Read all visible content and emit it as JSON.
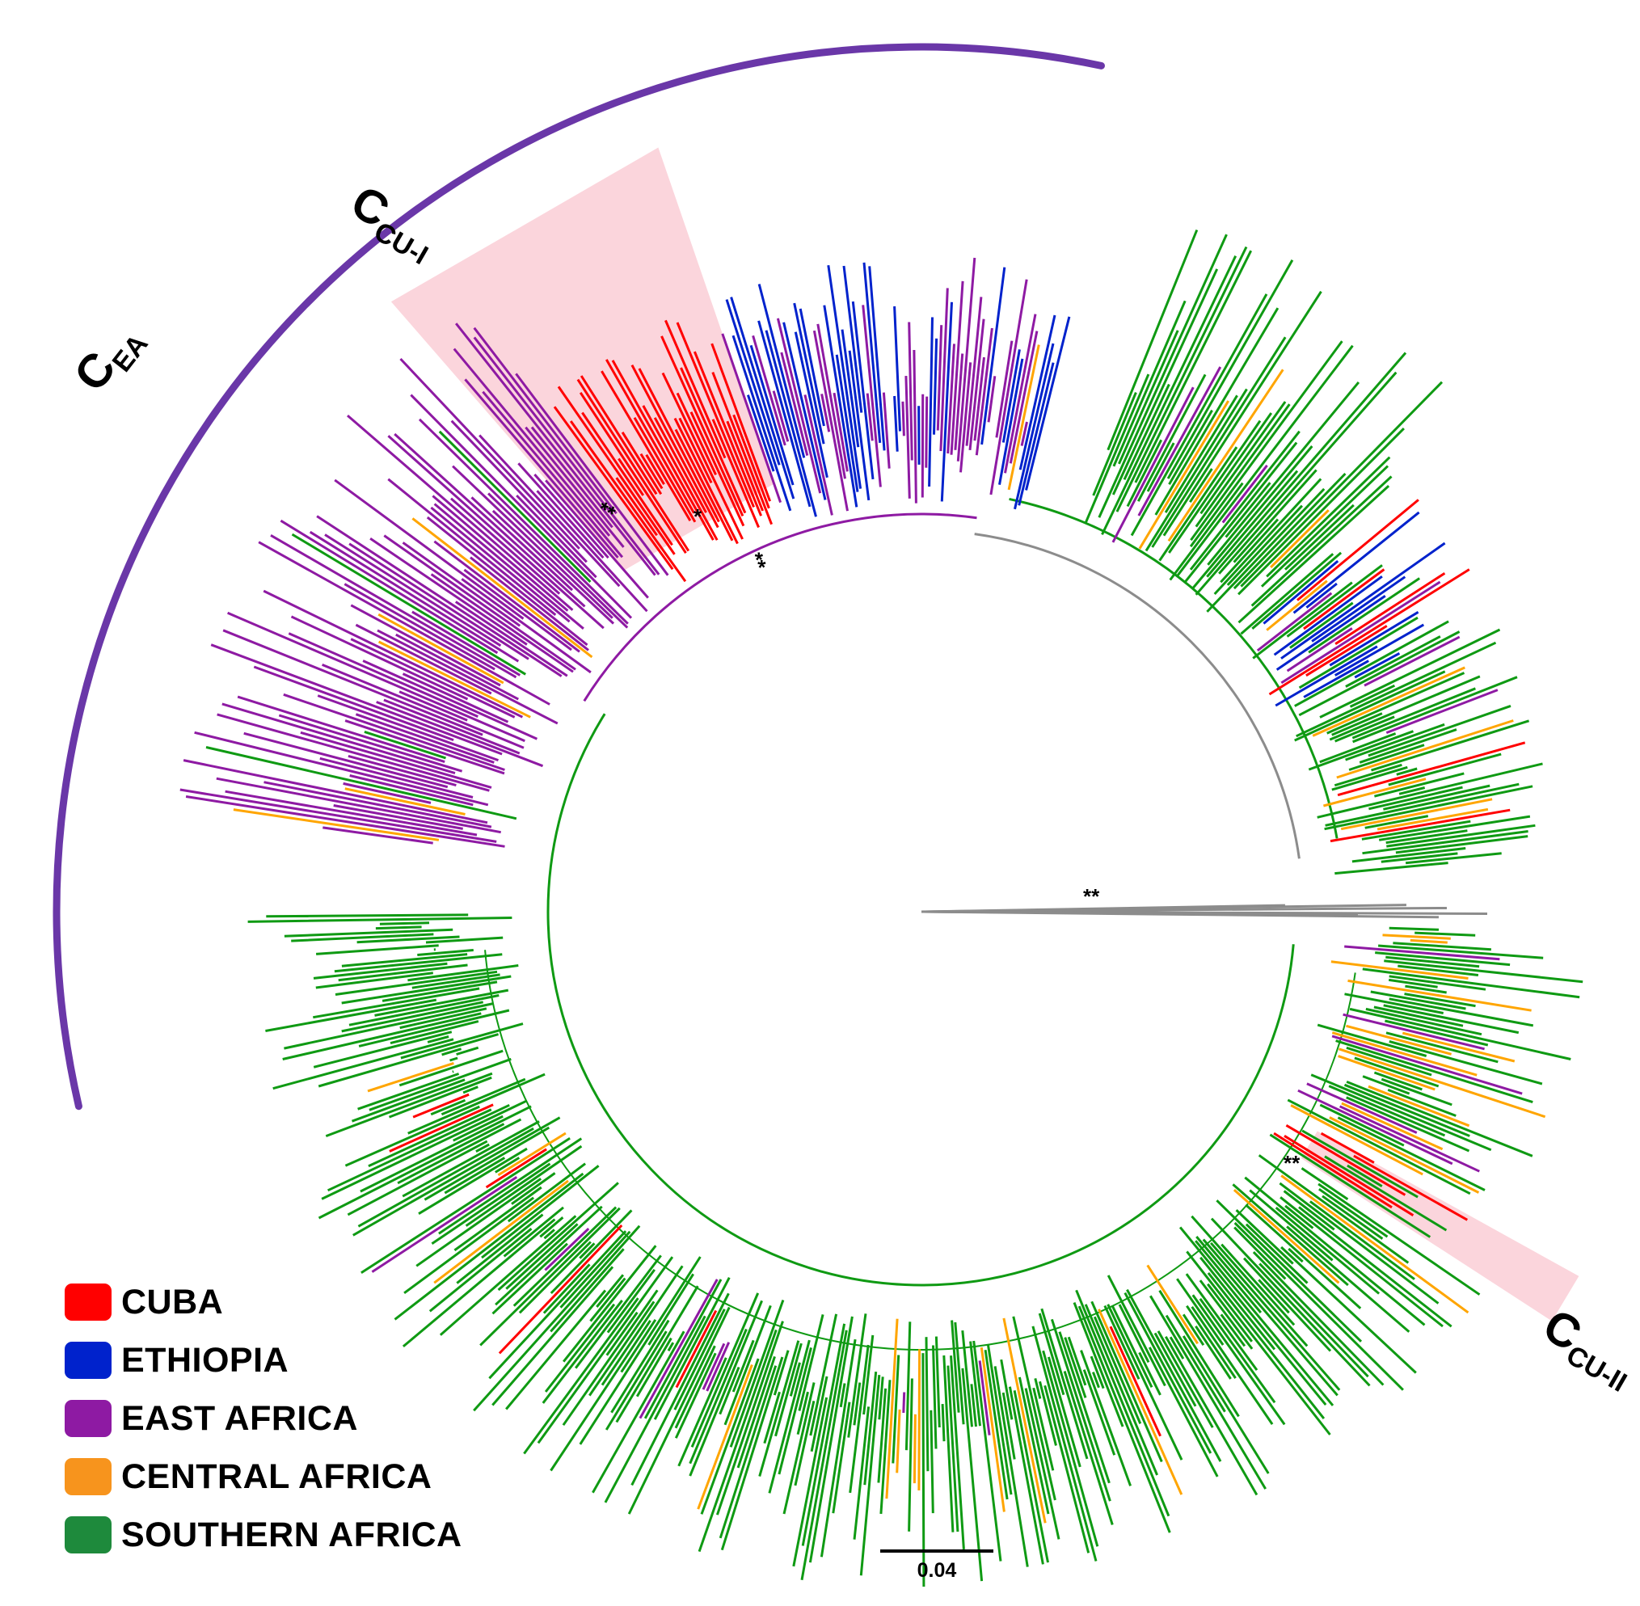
{
  "figure": {
    "palette": {
      "cuba": "#ff0000",
      "ethiopia": "#0022cc",
      "east_africa": "#8e1aa3",
      "central_africa": "#ffa500",
      "southern_africa": "#0f9a13",
      "basal": "#8c8c8c",
      "highlight": "#fbd5dc",
      "bracket": "#6a37a8"
    },
    "clade_labels": {
      "c_ea": {
        "main": "C",
        "sub": "EA"
      },
      "c_cu_1": {
        "main": "C",
        "sub": "CU-I"
      },
      "c_cu_2": {
        "main": "C",
        "sub": "CU-II"
      }
    },
    "support_markers": [
      "**",
      "*",
      "**",
      "**",
      "**"
    ],
    "legend": [
      {
        "label": "CUBA",
        "color": "#ff0000"
      },
      {
        "label": "ETHIOPIA",
        "color": "#0022cc"
      },
      {
        "label": "EAST AFRICA",
        "color": "#8e1aa3"
      },
      {
        "label": "CENTRAL AFRICA",
        "color": "#f7941d"
      },
      {
        "label": "SOUTHERN AFRICA",
        "color": "#1e8a3c"
      }
    ],
    "scale_bar": {
      "label": "0.04"
    }
  }
}
